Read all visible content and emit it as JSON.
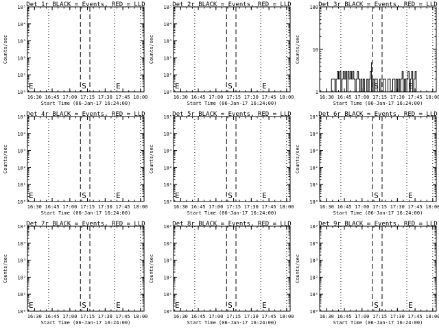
{
  "chart_data": [
    {
      "type": "line",
      "title": "Det 1r BLACK = Events, RED = LLD",
      "xlabel": "Start Time (06-Jan-17 16:24:00)",
      "ylabel": "Counts/sec",
      "yscale": "log",
      "xlim": [
        "16:24",
        "18:03"
      ],
      "ylim": [
        1,
        100000
      ],
      "xtick_labels": [
        "16:30",
        "16:45",
        "17:00",
        "17:15",
        "17:30",
        "17:45",
        "18:00"
      ],
      "ytick_labels": [
        "10⁰",
        "10¹",
        "10²",
        "10³",
        "10⁴",
        "10⁵"
      ],
      "markers": [
        {
          "time": "16:24",
          "style": "dotted",
          "label": "E"
        },
        {
          "time": "16:42",
          "style": "dotted",
          "label": ""
        },
        {
          "time": "17:09",
          "style": "dashed",
          "label": "S"
        },
        {
          "time": "17:17",
          "style": "dashed",
          "label": ""
        },
        {
          "time": "17:38",
          "style": "dotted",
          "label": "E"
        },
        {
          "time": "18:00",
          "style": "dotted",
          "label": ""
        }
      ],
      "series": []
    },
    {
      "type": "line",
      "title": "Det 2r BLACK = Events, RED = LLD",
      "xlabel": "Start Time (06-Jan-17 16:24:00)",
      "ylabel": "Counts/sec",
      "yscale": "log",
      "xlim": [
        "16:24",
        "18:03"
      ],
      "ylim": [
        1,
        100000
      ],
      "xtick_labels": [
        "16:30",
        "16:45",
        "17:00",
        "17:15",
        "17:30",
        "17:45",
        "18:00"
      ],
      "ytick_labels": [
        "10⁰",
        "10¹",
        "10²",
        "10³",
        "10⁴",
        "10⁵"
      ],
      "markers": [
        {
          "time": "16:24",
          "style": "dotted",
          "label": "E"
        },
        {
          "time": "16:42",
          "style": "dotted",
          "label": ""
        },
        {
          "time": "17:09",
          "style": "dashed",
          "label": "S"
        },
        {
          "time": "17:17",
          "style": "dashed",
          "label": ""
        },
        {
          "time": "17:38",
          "style": "dotted",
          "label": "E"
        },
        {
          "time": "18:00",
          "style": "dotted",
          "label": ""
        }
      ],
      "series": []
    },
    {
      "type": "line",
      "title": "Det 3r BLACK = Events, RED = LLD",
      "xlabel": "Start Time (06-Jan-17 16:24:00)",
      "ylabel": "Counts/sec",
      "yscale": "log",
      "xlim": [
        "16:24",
        "18:03"
      ],
      "ylim": [
        1,
        100
      ],
      "xtick_labels": [
        "16:30",
        "16:45",
        "17:00",
        "17:15",
        "17:30",
        "17:45",
        "18:00"
      ],
      "ytick_labels": [
        "1",
        "10",
        "100"
      ],
      "markers": [
        {
          "time": "16:24",
          "style": "dotted",
          "label": ""
        },
        {
          "time": "16:42",
          "style": "dotted",
          "label": ""
        },
        {
          "time": "17:09",
          "style": "dashed",
          "label": "S"
        },
        {
          "time": "17:17",
          "style": "dashed",
          "label": ""
        },
        {
          "time": "17:38",
          "style": "dotted",
          "label": "E"
        },
        {
          "time": "18:00",
          "style": "dotted",
          "label": ""
        }
      ],
      "series": [
        {
          "color": "#000000",
          "points": [
            [
              "16:34",
              1
            ],
            [
              "16:35",
              2
            ],
            [
              "16:37",
              2
            ],
            [
              "16:38",
              1
            ],
            [
              "16:39",
              2
            ],
            [
              "16:40",
              3
            ],
            [
              "16:41",
              2
            ],
            [
              "16:42",
              3
            ],
            [
              "16:43",
              1
            ],
            [
              "16:44",
              2
            ],
            [
              "16:45",
              3
            ],
            [
              "16:46",
              2
            ],
            [
              "16:47",
              3
            ],
            [
              "16:48",
              1
            ],
            [
              "16:49",
              3
            ],
            [
              "16:50",
              2
            ],
            [
              "16:51",
              3
            ],
            [
              "16:52",
              2
            ],
            [
              "16:53",
              3
            ],
            [
              "16:54",
              2
            ],
            [
              "16:55",
              1
            ],
            [
              "16:56",
              2
            ],
            [
              "16:57",
              3
            ],
            [
              "16:58",
              2
            ],
            [
              "16:59",
              1
            ],
            [
              "17:00",
              2
            ],
            [
              "17:01",
              1
            ],
            [
              "17:02",
              2
            ],
            [
              "17:03",
              1
            ],
            [
              "17:04",
              1
            ],
            [
              "17:05",
              2
            ],
            [
              "17:06",
              1
            ],
            [
              "17:07",
              2
            ],
            [
              "17:08",
              3
            ],
            [
              "17:08",
              5
            ],
            [
              "17:09",
              1
            ],
            [
              "17:10",
              2
            ],
            [
              "17:11",
              1
            ],
            [
              "17:13",
              2
            ],
            [
              "17:15",
              1
            ],
            [
              "17:16",
              2
            ],
            [
              "17:18",
              1
            ],
            [
              "17:20",
              2
            ],
            [
              "17:22",
              1
            ],
            [
              "17:24",
              2
            ],
            [
              "17:26",
              1
            ],
            [
              "17:28",
              2
            ],
            [
              "17:29",
              1
            ],
            [
              "17:30",
              2
            ],
            [
              "17:31",
              1
            ],
            [
              "17:32",
              2
            ],
            [
              "17:33",
              1
            ],
            [
              "17:34",
              2
            ],
            [
              "17:35",
              3
            ],
            [
              "17:36",
              1
            ],
            [
              "17:37",
              2
            ],
            [
              "17:38",
              1
            ],
            [
              "17:39",
              2
            ],
            [
              "17:40",
              3
            ],
            [
              "17:41",
              1
            ],
            [
              "17:42",
              2
            ],
            [
              "17:43",
              3
            ],
            [
              "17:44",
              1
            ],
            [
              "17:45",
              2
            ],
            [
              "17:46",
              3
            ],
            [
              "17:47",
              1
            ],
            [
              "17:48",
              1
            ]
          ]
        }
      ]
    },
    {
      "type": "line",
      "title": "Det 4r BLACK = Events, RED = LLD",
      "xlabel": "Start Time (06-Jan-17 16:24:00)",
      "ylabel": "Counts/sec",
      "yscale": "log",
      "xlim": [
        "16:24",
        "18:03"
      ],
      "ylim": [
        1,
        100000
      ],
      "xtick_labels": [
        "16:30",
        "16:45",
        "17:00",
        "17:15",
        "17:30",
        "17:45",
        "18:00"
      ],
      "ytick_labels": [
        "10⁰",
        "10¹",
        "10²",
        "10³",
        "10⁴",
        "10⁵"
      ],
      "markers": [
        {
          "time": "16:24",
          "style": "dotted",
          "label": "E"
        },
        {
          "time": "16:42",
          "style": "dotted",
          "label": ""
        },
        {
          "time": "17:09",
          "style": "dashed",
          "label": "S"
        },
        {
          "time": "17:17",
          "style": "dashed",
          "label": ""
        },
        {
          "time": "17:38",
          "style": "dotted",
          "label": "E"
        },
        {
          "time": "18:00",
          "style": "dotted",
          "label": ""
        }
      ],
      "series": []
    },
    {
      "type": "line",
      "title": "Det 5r BLACK = Events, RED = LLD",
      "xlabel": "Start Time (06-Jan-17 16:24:00)",
      "ylabel": "Counts/sec",
      "yscale": "log",
      "xlim": [
        "16:24",
        "18:03"
      ],
      "ylim": [
        1,
        100000
      ],
      "xtick_labels": [
        "16:30",
        "16:45",
        "17:00",
        "17:15",
        "17:30",
        "17:45",
        "18:00"
      ],
      "ytick_labels": [
        "10⁰",
        "10¹",
        "10²",
        "10³",
        "10⁴",
        "10⁵"
      ],
      "markers": [
        {
          "time": "16:24",
          "style": "dotted",
          "label": "E"
        },
        {
          "time": "16:42",
          "style": "dotted",
          "label": ""
        },
        {
          "time": "17:09",
          "style": "dashed",
          "label": "S"
        },
        {
          "time": "17:17",
          "style": "dashed",
          "label": ""
        },
        {
          "time": "17:38",
          "style": "dotted",
          "label": "E"
        },
        {
          "time": "18:00",
          "style": "dotted",
          "label": ""
        }
      ],
      "series": []
    },
    {
      "type": "line",
      "title": "Det 6r BLACK = Events, RED = LLD",
      "xlabel": "Start Time (06-Jan-17 16:24:00)",
      "ylabel": "Counts/sec",
      "yscale": "log",
      "xlim": [
        "16:24",
        "18:03"
      ],
      "ylim": [
        1,
        100000
      ],
      "xtick_labels": [
        "16:30",
        "16:45",
        "17:00",
        "17:15",
        "17:30",
        "17:45",
        "18:00"
      ],
      "ytick_labels": [
        "10⁰",
        "10¹",
        "10²",
        "10³",
        "10⁴",
        "10⁵"
      ],
      "markers": [
        {
          "time": "16:24",
          "style": "dotted",
          "label": ""
        },
        {
          "time": "16:42",
          "style": "dotted",
          "label": ""
        },
        {
          "time": "17:09",
          "style": "dashed",
          "label": "S"
        },
        {
          "time": "17:17",
          "style": "dashed",
          "label": ""
        },
        {
          "time": "17:38",
          "style": "dotted",
          "label": "E"
        },
        {
          "time": "18:00",
          "style": "dotted",
          "label": ""
        }
      ],
      "series": []
    },
    {
      "type": "line",
      "title": "Det 7r BLACK = Events, RED = LLD",
      "xlabel": "Start Time (06-Jan-17 16:24:00)",
      "ylabel": "Counts/sec",
      "yscale": "log",
      "xlim": [
        "16:24",
        "18:03"
      ],
      "ylim": [
        1,
        100000
      ],
      "xtick_labels": [
        "16:30",
        "16:45",
        "17:00",
        "17:15",
        "17:30",
        "17:45",
        "18:00"
      ],
      "ytick_labels": [
        "10⁰",
        "10¹",
        "10²",
        "10³",
        "10⁴",
        "10⁵"
      ],
      "markers": [
        {
          "time": "16:24",
          "style": "dotted",
          "label": "E"
        },
        {
          "time": "16:42",
          "style": "dotted",
          "label": ""
        },
        {
          "time": "17:09",
          "style": "dashed",
          "label": "S"
        },
        {
          "time": "17:17",
          "style": "dashed",
          "label": ""
        },
        {
          "time": "17:38",
          "style": "dotted",
          "label": "E"
        },
        {
          "time": "18:00",
          "style": "dotted",
          "label": ""
        }
      ],
      "series": []
    },
    {
      "type": "line",
      "title": "Det 8r BLACK = Events, RED = LLD",
      "xlabel": "Start Time (06-Jan-17 16:24:00)",
      "ylabel": "Counts/sec",
      "yscale": "log",
      "xlim": [
        "16:24",
        "18:03"
      ],
      "ylim": [
        1,
        100000
      ],
      "xtick_labels": [
        "16:30",
        "16:45",
        "17:00",
        "17:15",
        "17:30",
        "17:45",
        "18:00"
      ],
      "ytick_labels": [
        "10⁰",
        "10¹",
        "10²",
        "10³",
        "10⁴",
        "10⁵"
      ],
      "markers": [
        {
          "time": "16:24",
          "style": "dotted",
          "label": "E"
        },
        {
          "time": "16:42",
          "style": "dotted",
          "label": ""
        },
        {
          "time": "17:09",
          "style": "dashed",
          "label": "S"
        },
        {
          "time": "17:17",
          "style": "dashed",
          "label": ""
        },
        {
          "time": "17:38",
          "style": "dotted",
          "label": "E"
        },
        {
          "time": "18:00",
          "style": "dotted",
          "label": ""
        }
      ],
      "series": []
    },
    {
      "type": "line",
      "title": "Det 9r BLACK = Events, RED = LLD",
      "xlabel": "Start Time (06-Jan-17 16:24:00)",
      "ylabel": "Counts/sec",
      "yscale": "log",
      "xlim": [
        "16:24",
        "18:03"
      ],
      "ylim": [
        1,
        100000
      ],
      "xtick_labels": [
        "16:30",
        "16:45",
        "17:00",
        "17:15",
        "17:30",
        "17:45",
        "18:00"
      ],
      "ytick_labels": [
        "10⁰",
        "10¹",
        "10²",
        "10³",
        "10⁴",
        "10⁵"
      ],
      "markers": [
        {
          "time": "16:24",
          "style": "dotted",
          "label": ""
        },
        {
          "time": "16:42",
          "style": "dotted",
          "label": ""
        },
        {
          "time": "17:09",
          "style": "dashed",
          "label": "S"
        },
        {
          "time": "17:17",
          "style": "dashed",
          "label": ""
        },
        {
          "time": "17:38",
          "style": "dotted",
          "label": "E"
        },
        {
          "time": "18:00",
          "style": "dotted",
          "label": ""
        }
      ],
      "series": []
    }
  ]
}
